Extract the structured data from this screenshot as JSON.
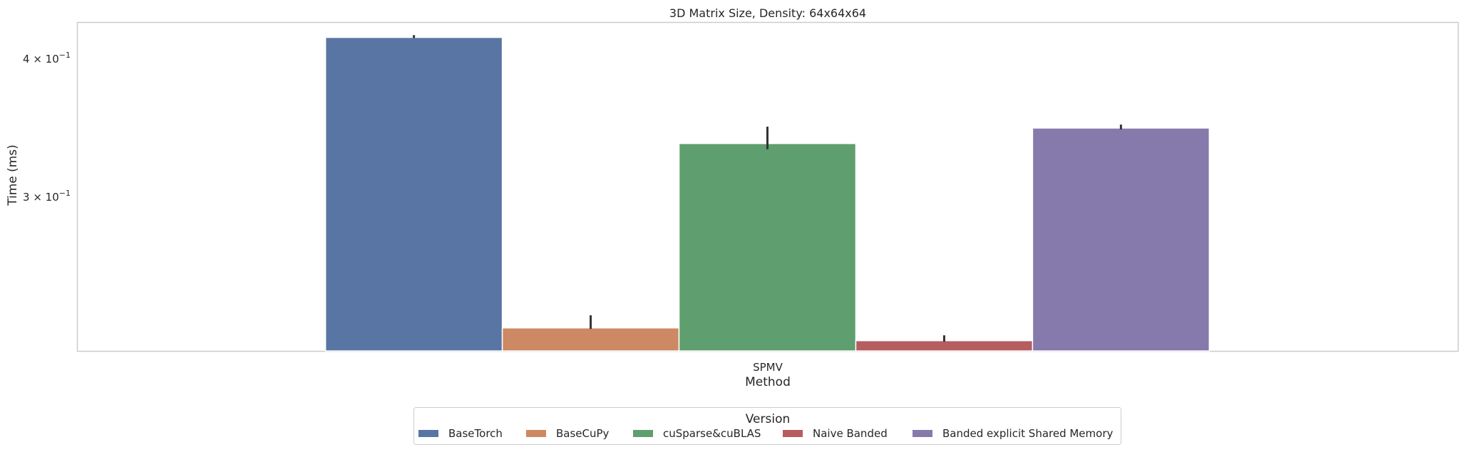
{
  "chart_data": {
    "type": "bar",
    "title": "3D Matrix Size, Density: 64x64x64",
    "xlabel": "Method",
    "ylabel": "Time (ms)",
    "yscale": "log",
    "ylim": [
      0.2178,
      0.4321
    ],
    "grid": false,
    "categories": [
      "SPMV"
    ],
    "y_ticks": [
      {
        "value": 0.3,
        "label_base": "3",
        "label_exp": "-1"
      },
      {
        "value": 0.4,
        "label_base": "4",
        "label_exp": "-1"
      }
    ],
    "series": [
      {
        "name": "BaseTorch",
        "color": "#5875a4",
        "values": [
          0.4185
        ],
        "ci": [
          [
            0.418,
            0.4205
          ]
        ]
      },
      {
        "name": "BaseCuPy",
        "color": "#cc8963",
        "values": [
          0.2285
        ],
        "ci": [
          [
            0.228,
            0.2346
          ]
        ]
      },
      {
        "name": "cuSparse&cuBLAS",
        "color": "#5f9e6e",
        "values": [
          0.3355
        ],
        "ci": [
          [
            0.3315,
            0.3475
          ]
        ]
      },
      {
        "name": "Naive Banded",
        "color": "#b55d60",
        "values": [
          0.2225
        ],
        "ci": [
          [
            0.222,
            0.225
          ]
        ]
      },
      {
        "name": "Banded explicit Shared Memory",
        "color": "#857aab",
        "values": [
          0.3465
        ],
        "ci": [
          [
            0.3455,
            0.349
          ]
        ]
      }
    ],
    "legend": {
      "title": "Version",
      "placement": "bottom-center"
    }
  }
}
